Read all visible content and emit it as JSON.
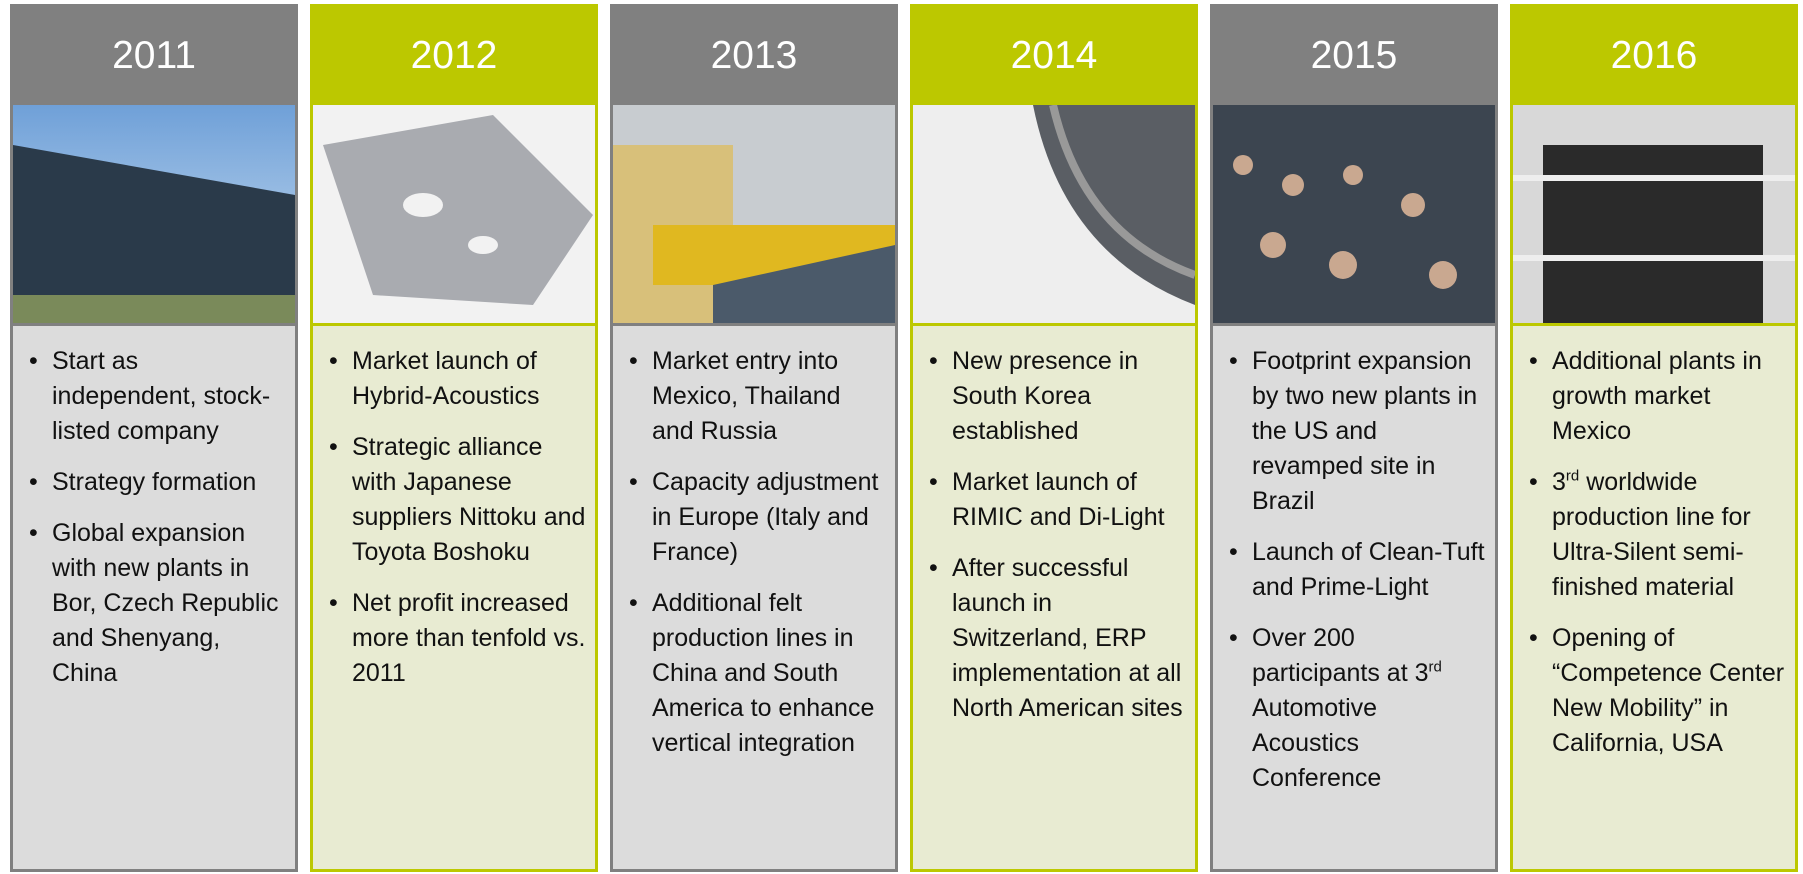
{
  "columns": [
    {
      "year": "2011",
      "bullets": [
        "Start as independent, stock-listed company",
        "Strategy formation",
        "Global expansion with new plants in Bor, Czech Republic and Shenyang, China"
      ]
    },
    {
      "year": "2012",
      "bullets": [
        "Market launch of Hybrid-Acoustics",
        "Strategic alliance with Japanese suppliers Nittoku and Toyota Boshoku",
        "Net profit increased more than tenfold vs. 2011"
      ]
    },
    {
      "year": "2013",
      "bullets": [
        "Market entry into Mexico, Thailand and Russia",
        "Capacity adjustment in Europe (Italy and France)",
        "Additional felt production lines in China and South America to enhance vertical integration"
      ]
    },
    {
      "year": "2014",
      "bullets": [
        "New presence in South Korea established",
        "Market launch of RIMIC and Di-Light",
        "After successful launch in Switzerland, ERP implementation at all North American sites"
      ]
    },
    {
      "year": "2015",
      "bullets": [
        "Footprint expansion by two new plants in the US and revamped site in Brazil",
        "Launch of Clean-Tuft and Prime-Light",
        [
          "Over 200 participants at 3",
          "rd",
          " Automotive Acoustics Conference"
        ]
      ]
    },
    {
      "year": "2016",
      "bullets": [
        "Additional plants in growth market Mexico",
        [
          "3",
          "rd",
          " worldwide production line for Ultra-Silent semi-finished material"
        ],
        "Opening of “Competence Center New Mobility” in California, USA"
      ]
    }
  ]
}
